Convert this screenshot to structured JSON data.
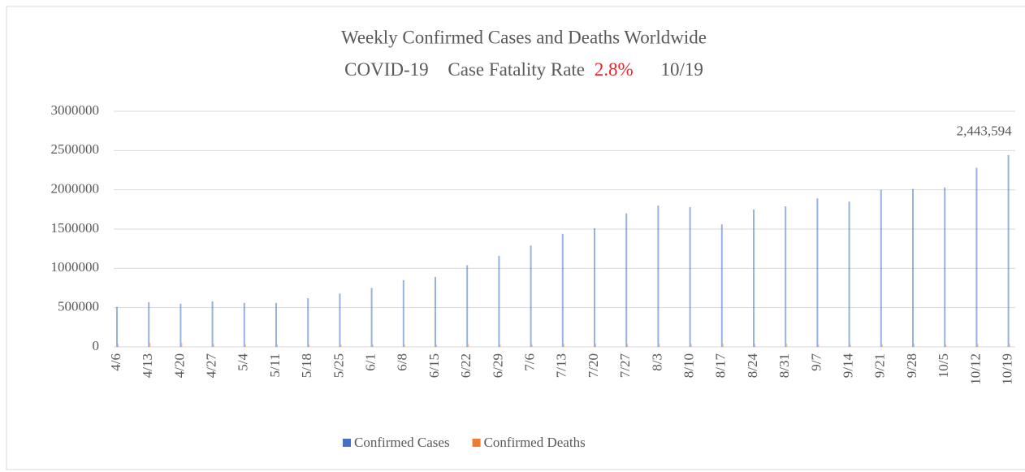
{
  "chart_data": {
    "type": "bar",
    "title": "Weekly Confirmed Cases and Deaths Worldwide",
    "subtitle": {
      "label": "COVID-19",
      "metric": "Case Fatality Rate",
      "rate": "2.8%",
      "date": "10/19",
      "rate_color": "#e8262b"
    },
    "categories": [
      "4/6",
      "4/13",
      "4/20",
      "4/27",
      "5/4",
      "5/11",
      "5/18",
      "5/25",
      "6/1",
      "6/8",
      "6/15",
      "6/22",
      "6/29",
      "7/6",
      "7/13",
      "7/20",
      "7/27",
      "8/3",
      "8/10",
      "8/17",
      "8/24",
      "8/31",
      "9/7",
      "9/14",
      "9/21",
      "9/28",
      "10/5",
      "10/12",
      "10/19"
    ],
    "series": [
      {
        "name": "Confirmed Cases",
        "color": "#4472c4",
        "values": [
          510000,
          570000,
          550000,
          580000,
          560000,
          560000,
          620000,
          680000,
          750000,
          850000,
          890000,
          1040000,
          1160000,
          1290000,
          1440000,
          1510000,
          1700000,
          1800000,
          1780000,
          1560000,
          1750000,
          1790000,
          1890000,
          1850000,
          2000000,
          2010000,
          2030000,
          2280000,
          2443594
        ],
        "value_labels": [
          null,
          null,
          null,
          null,
          null,
          null,
          null,
          null,
          null,
          null,
          null,
          null,
          null,
          null,
          null,
          null,
          null,
          null,
          null,
          null,
          null,
          null,
          null,
          null,
          null,
          null,
          null,
          null,
          "2,443,594"
        ]
      },
      {
        "name": "Confirmed Deaths",
        "color": "#ed7d31",
        "values": [
          40000,
          50000,
          50000,
          40000,
          35000,
          30000,
          30000,
          30000,
          30000,
          30000,
          30000,
          35000,
          35000,
          35000,
          40000,
          40000,
          40000,
          40000,
          40000,
          40000,
          40000,
          40000,
          35000,
          35000,
          35000,
          40000,
          35000,
          40000,
          40000
        ]
      }
    ],
    "ylim": [
      0,
      3000000
    ],
    "yticks": [
      0,
      500000,
      1000000,
      1500000,
      2000000,
      2500000,
      3000000
    ],
    "grid": true,
    "legend": "bottom"
  }
}
